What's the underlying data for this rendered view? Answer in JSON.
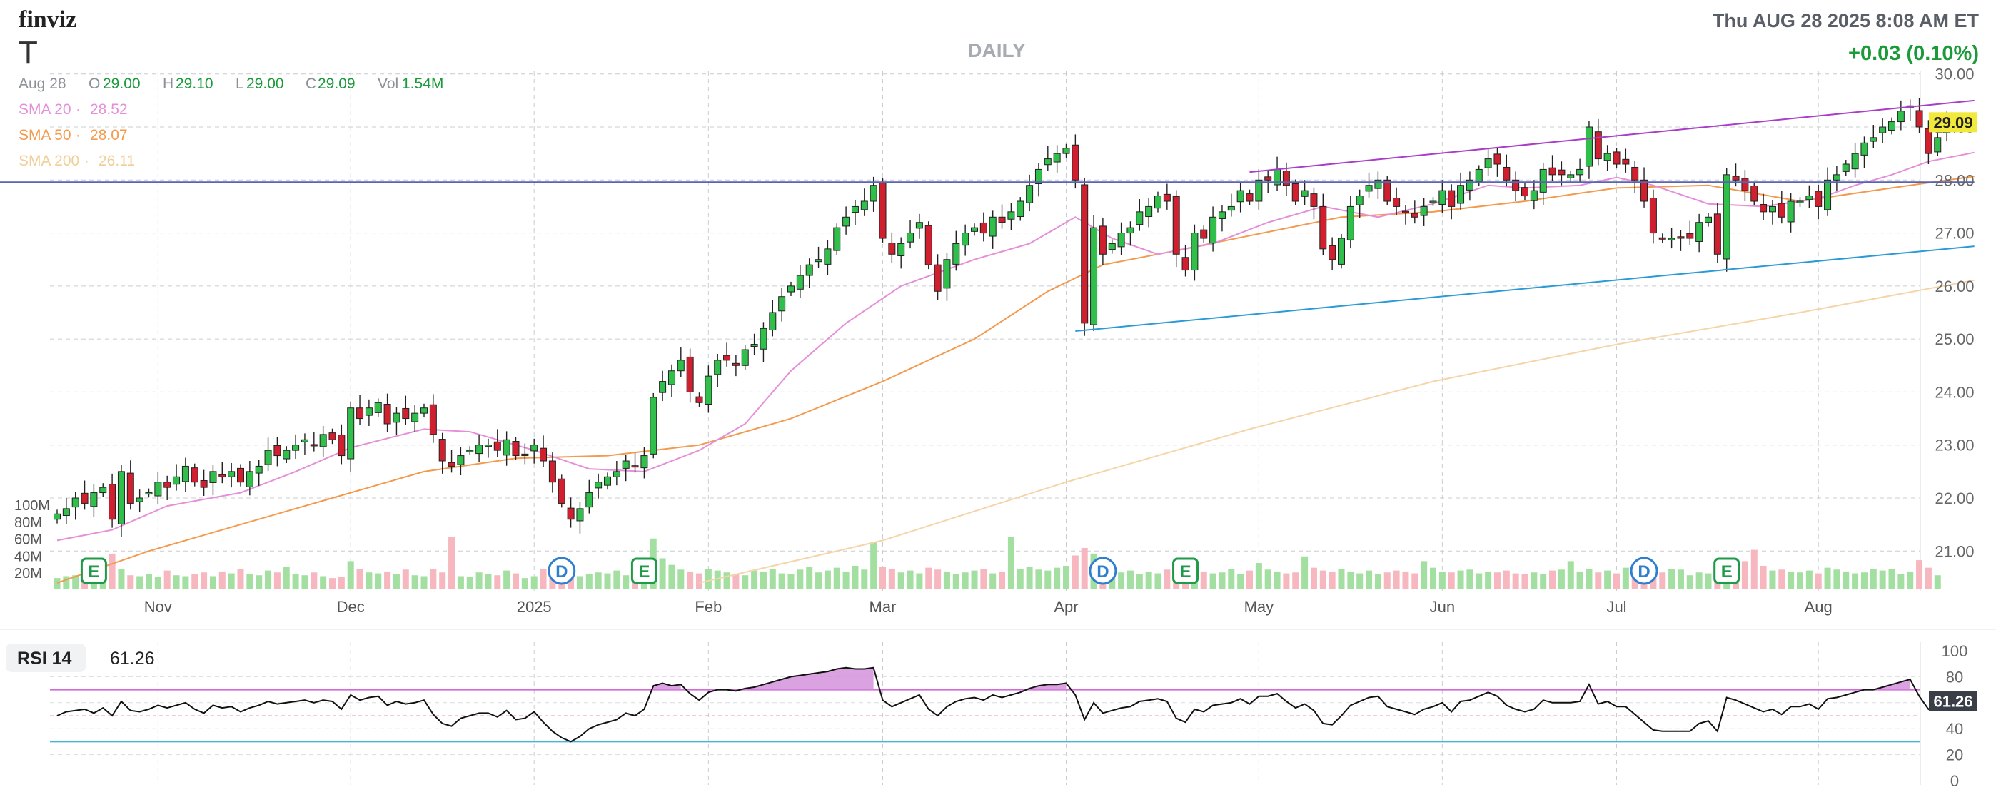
{
  "header": {
    "brand": "finviz",
    "ticker": "T",
    "timeframe": "DAILY",
    "datetime": "Thu AUG 28 2025 8:08 AM ET",
    "change": "+0.03 (0.10%)",
    "ohlc": [
      {
        "label": "Aug 28",
        "value": ""
      },
      {
        "label": "O",
        "value": "29.00"
      },
      {
        "label": "H",
        "value": "29.10"
      },
      {
        "label": "L",
        "value": "29.00"
      },
      {
        "label": "C",
        "value": "29.09"
      },
      {
        "label": "Vol",
        "value": "1.54M"
      }
    ],
    "sma": [
      {
        "label": "SMA 20",
        "value": "28.52",
        "color": "#e58fd8"
      },
      {
        "label": "SMA 50",
        "value": "28.07",
        "color": "#f39a4d"
      },
      {
        "label": "SMA 200",
        "value": "26.11",
        "color": "#f5d5a8"
      }
    ]
  },
  "colors": {
    "up": "#2fbf4a",
    "down": "#d0202f",
    "vol_up": "#a3dfa0",
    "vol_down": "#f6b7be",
    "resistance": "#5a62b3",
    "channel_top": "#a93cc8",
    "channel_bottom": "#2a9ad6",
    "earnings": "#1f9a48",
    "dividend": "#2f7fd0",
    "rsi_line": "#111111",
    "rsi_overbought": "#d26ad8",
    "rsi_oversold": "#45b7d6",
    "last_price": "#f1ea3c"
  },
  "chart_data": {
    "type": "candlestick",
    "price_axis": {
      "ticks": [
        "30.00",
        "29.00",
        "28.00",
        "27.00",
        "26.00",
        "25.00",
        "24.00",
        "23.00",
        "22.00",
        "21.00"
      ],
      "range": [
        20.25,
        30.05
      ]
    },
    "volume_axis": {
      "ticks": [
        "100M",
        "80M",
        "60M",
        "40M",
        "20M"
      ]
    },
    "x_ticks": [
      {
        "label": "Nov",
        "i": 11
      },
      {
        "label": "Dec",
        "i": 32
      },
      {
        "label": "2025",
        "i": 52
      },
      {
        "label": "Feb",
        "i": 71
      },
      {
        "label": "Mar",
        "i": 90
      },
      {
        "label": "Apr",
        "i": 110
      },
      {
        "label": "May",
        "i": 131
      },
      {
        "label": "Jun",
        "i": 151
      },
      {
        "label": "Jul",
        "i": 170
      },
      {
        "label": "Aug",
        "i": 192
      }
    ],
    "last_price": "29.09",
    "closes": [
      21.7,
      21.8,
      22.0,
      21.9,
      22.1,
      22.2,
      21.6,
      22.5,
      21.9,
      22.0,
      22.1,
      22.3,
      22.2,
      22.4,
      22.6,
      22.3,
      22.2,
      22.5,
      22.4,
      22.5,
      22.3,
      22.5,
      22.6,
      22.9,
      22.8,
      22.9,
      23.0,
      23.1,
      23.0,
      23.2,
      23.1,
      22.8,
      23.7,
      23.5,
      23.7,
      23.8,
      23.4,
      23.6,
      23.5,
      23.6,
      23.7,
      23.2,
      22.7,
      22.6,
      22.8,
      22.9,
      23.0,
      23.0,
      22.9,
      23.1,
      22.8,
      22.8,
      23.0,
      22.7,
      22.3,
      21.9,
      21.6,
      21.8,
      22.1,
      22.3,
      22.4,
      22.5,
      22.7,
      22.6,
      22.8,
      23.9,
      24.2,
      24.4,
      24.6,
      24.0,
      23.8,
      24.3,
      24.6,
      24.6,
      24.5,
      24.8,
      24.9,
      25.2,
      25.5,
      25.8,
      26.0,
      26.2,
      26.4,
      26.5,
      26.7,
      27.1,
      27.3,
      27.5,
      27.6,
      27.9,
      26.9,
      26.6,
      26.8,
      27.0,
      27.2,
      26.4,
      25.9,
      26.5,
      26.8,
      27.0,
      27.1,
      27.0,
      27.3,
      27.2,
      27.4,
      27.6,
      27.9,
      28.2,
      28.4,
      28.5,
      28.6,
      28.0,
      25.3,
      27.1,
      26.6,
      26.8,
      27.0,
      27.1,
      27.4,
      27.5,
      27.7,
      27.6,
      26.6,
      26.3,
      27.0,
      26.9,
      27.3,
      27.4,
      27.5,
      27.8,
      27.6,
      28.0,
      28.0,
      28.2,
      27.9,
      27.6,
      27.8,
      27.5,
      26.7,
      26.5,
      26.9,
      27.5,
      27.7,
      27.9,
      28.0,
      27.6,
      27.5,
      27.4,
      27.3,
      27.5,
      27.6,
      27.8,
      27.5,
      27.9,
      28.0,
      28.2,
      28.4,
      28.3,
      28.0,
      27.8,
      27.7,
      27.8,
      28.2,
      28.1,
      28.1,
      28.1,
      28.2,
      29.0,
      28.4,
      28.5,
      28.3,
      28.3,
      28.0,
      27.6,
      27.0,
      26.9,
      26.9,
      26.9,
      26.9,
      27.2,
      27.3,
      26.6,
      28.1,
      28.0,
      27.8,
      27.6,
      27.4,
      27.5,
      27.3,
      27.6,
      27.6,
      27.7,
      27.5,
      28.0,
      28.1,
      28.3,
      28.5,
      28.7,
      28.8,
      29.0,
      29.1,
      29.3,
      29.4,
      29.0,
      28.5,
      28.8,
      29.09
    ],
    "volumes_m": [
      12,
      14,
      15,
      16,
      13,
      18,
      38,
      22,
      15,
      14,
      16,
      13,
      20,
      15,
      14,
      16,
      18,
      14,
      19,
      17,
      22,
      16,
      15,
      20,
      18,
      24,
      16,
      15,
      18,
      14,
      12,
      13,
      30,
      22,
      18,
      17,
      19,
      16,
      21,
      15,
      14,
      22,
      18,
      56,
      14,
      13,
      18,
      16,
      15,
      20,
      17,
      12,
      14,
      22,
      16,
      18,
      15,
      14,
      16,
      18,
      17,
      20,
      15,
      14,
      16,
      54,
      33,
      26,
      21,
      19,
      17,
      22,
      20,
      18,
      16,
      15,
      20,
      19,
      22,
      17,
      16,
      21,
      24,
      18,
      20,
      23,
      19,
      25,
      21,
      50,
      24,
      22,
      18,
      20,
      17,
      23,
      21,
      19,
      16,
      18,
      20,
      22,
      17,
      19,
      56,
      22,
      24,
      21,
      20,
      23,
      25,
      36,
      44,
      38,
      32,
      22,
      18,
      20,
      16,
      19,
      17,
      21,
      23,
      18,
      20,
      19,
      17,
      18,
      22,
      16,
      20,
      28,
      21,
      19,
      17,
      18,
      35,
      23,
      20,
      19,
      22,
      19,
      17,
      20,
      16,
      18,
      20,
      19,
      17,
      30,
      23,
      19,
      18,
      20,
      21,
      17,
      19,
      18,
      20,
      17,
      16,
      18,
      16,
      20,
      21,
      30,
      19,
      22,
      18,
      20,
      17,
      23,
      21,
      16,
      20,
      18,
      22,
      21,
      15,
      18,
      17,
      19,
      16,
      20,
      30,
      42,
      25,
      20,
      21,
      19,
      18,
      20,
      17,
      23,
      21,
      19,
      17,
      18,
      22,
      20,
      22,
      16,
      19,
      31,
      23,
      15
    ],
    "sma20": [
      {
        "i": 0,
        "v": 21.2
      },
      {
        "i": 6,
        "v": 21.4
      },
      {
        "i": 12,
        "v": 21.85
      },
      {
        "i": 20,
        "v": 22.1
      },
      {
        "i": 26,
        "v": 22.5
      },
      {
        "i": 32,
        "v": 22.95
      },
      {
        "i": 40,
        "v": 23.3
      },
      {
        "i": 45,
        "v": 23.25
      },
      {
        "i": 52,
        "v": 22.9
      },
      {
        "i": 58,
        "v": 22.55
      },
      {
        "i": 64,
        "v": 22.5
      },
      {
        "i": 70,
        "v": 22.9
      },
      {
        "i": 75,
        "v": 23.4
      },
      {
        "i": 80,
        "v": 24.4
      },
      {
        "i": 86,
        "v": 25.3
      },
      {
        "i": 92,
        "v": 26.0
      },
      {
        "i": 100,
        "v": 26.5
      },
      {
        "i": 106,
        "v": 26.8
      },
      {
        "i": 111,
        "v": 27.3
      },
      {
        "i": 115,
        "v": 26.9
      },
      {
        "i": 120,
        "v": 26.6
      },
      {
        "i": 126,
        "v": 26.8
      },
      {
        "i": 132,
        "v": 27.2
      },
      {
        "i": 138,
        "v": 27.5
      },
      {
        "i": 144,
        "v": 27.3
      },
      {
        "i": 150,
        "v": 27.55
      },
      {
        "i": 156,
        "v": 27.9
      },
      {
        "i": 160,
        "v": 27.85
      },
      {
        "i": 166,
        "v": 27.9
      },
      {
        "i": 170,
        "v": 28.05
      },
      {
        "i": 174,
        "v": 27.9
      },
      {
        "i": 180,
        "v": 27.55
      },
      {
        "i": 186,
        "v": 27.5
      },
      {
        "i": 192,
        "v": 27.65
      },
      {
        "i": 196,
        "v": 27.9
      },
      {
        "i": 200,
        "v": 28.1
      },
      {
        "i": 204,
        "v": 28.35
      },
      {
        "i": 209,
        "v": 28.52
      }
    ],
    "sma50": [
      {
        "i": 0,
        "v": 20.4
      },
      {
        "i": 10,
        "v": 21.0
      },
      {
        "i": 20,
        "v": 21.5
      },
      {
        "i": 30,
        "v": 22.0
      },
      {
        "i": 40,
        "v": 22.5
      },
      {
        "i": 50,
        "v": 22.75
      },
      {
        "i": 60,
        "v": 22.8
      },
      {
        "i": 70,
        "v": 23.0
      },
      {
        "i": 80,
        "v": 23.5
      },
      {
        "i": 90,
        "v": 24.2
      },
      {
        "i": 100,
        "v": 25.0
      },
      {
        "i": 108,
        "v": 25.9
      },
      {
        "i": 114,
        "v": 26.4
      },
      {
        "i": 120,
        "v": 26.6
      },
      {
        "i": 130,
        "v": 26.95
      },
      {
        "i": 140,
        "v": 27.3
      },
      {
        "i": 150,
        "v": 27.4
      },
      {
        "i": 160,
        "v": 27.6
      },
      {
        "i": 170,
        "v": 27.85
      },
      {
        "i": 180,
        "v": 27.9
      },
      {
        "i": 190,
        "v": 27.6
      },
      {
        "i": 200,
        "v": 27.85
      },
      {
        "i": 209,
        "v": 28.07
      }
    ],
    "sma200": [
      {
        "i": 70,
        "v": 20.4
      },
      {
        "i": 90,
        "v": 21.2
      },
      {
        "i": 110,
        "v": 22.3
      },
      {
        "i": 130,
        "v": 23.3
      },
      {
        "i": 150,
        "v": 24.2
      },
      {
        "i": 170,
        "v": 24.9
      },
      {
        "i": 190,
        "v": 25.5
      },
      {
        "i": 209,
        "v": 26.11
      }
    ],
    "lines": [
      {
        "name": "resistance",
        "i1": -7,
        "v1": 27.96,
        "i2": 209,
        "v2": 27.96
      },
      {
        "name": "channel_top",
        "i1": 130,
        "v1": 28.15,
        "i2": 209,
        "v2": 29.5
      },
      {
        "name": "channel_bottom",
        "i1": 111,
        "v1": 25.15,
        "i2": 209,
        "v2": 26.75
      }
    ],
    "events": [
      {
        "type": "E",
        "i": 4
      },
      {
        "type": "D",
        "i": 55
      },
      {
        "type": "E",
        "i": 64
      },
      {
        "type": "D",
        "i": 114
      },
      {
        "type": "E",
        "i": 123
      },
      {
        "type": "D",
        "i": 173
      },
      {
        "type": "E",
        "i": 182
      }
    ],
    "rsi": {
      "label": "RSI 14",
      "value": "61.26",
      "ticks": [
        "100",
        "80",
        "60",
        "40",
        "20",
        "0"
      ],
      "overbought": 70,
      "oversold": 30,
      "values": [
        50,
        53,
        54,
        55,
        52,
        56,
        50,
        61,
        54,
        53,
        55,
        58,
        56,
        58,
        60,
        55,
        52,
        58,
        56,
        57,
        53,
        56,
        58,
        61,
        59,
        60,
        61,
        62,
        60,
        62,
        61,
        55,
        66,
        62,
        64,
        65,
        58,
        61,
        59,
        60,
        62,
        51,
        44,
        42,
        48,
        50,
        52,
        52,
        49,
        54,
        47,
        48,
        53,
        45,
        38,
        33,
        30,
        34,
        40,
        43,
        45,
        47,
        52,
        50,
        55,
        73,
        75,
        73,
        74,
        67,
        62,
        68,
        70,
        70,
        69,
        71,
        72,
        74,
        76,
        78,
        80,
        81,
        82,
        83,
        84,
        86,
        87,
        86,
        86,
        87,
        62,
        57,
        60,
        63,
        66,
        55,
        50,
        57,
        61,
        63,
        64,
        62,
        66,
        64,
        66,
        68,
        71,
        73,
        74,
        74,
        75,
        66,
        47,
        60,
        52,
        54,
        56,
        57,
        61,
        62,
        63,
        61,
        48,
        45,
        55,
        53,
        58,
        59,
        60,
        63,
        59,
        65,
        65,
        67,
        61,
        56,
        59,
        54,
        44,
        43,
        50,
        58,
        61,
        64,
        65,
        57,
        55,
        53,
        51,
        55,
        57,
        60,
        53,
        61,
        62,
        65,
        68,
        65,
        58,
        55,
        53,
        55,
        62,
        60,
        60,
        60,
        61,
        74,
        59,
        61,
        57,
        57,
        51,
        45,
        39,
        38,
        38,
        38,
        38,
        44,
        46,
        38,
        64,
        62,
        59,
        56,
        53,
        55,
        51,
        57,
        57,
        59,
        55,
        63,
        64,
        66,
        68,
        70,
        70,
        72,
        74,
        76,
        78,
        65,
        55,
        59,
        61.26
      ]
    }
  }
}
